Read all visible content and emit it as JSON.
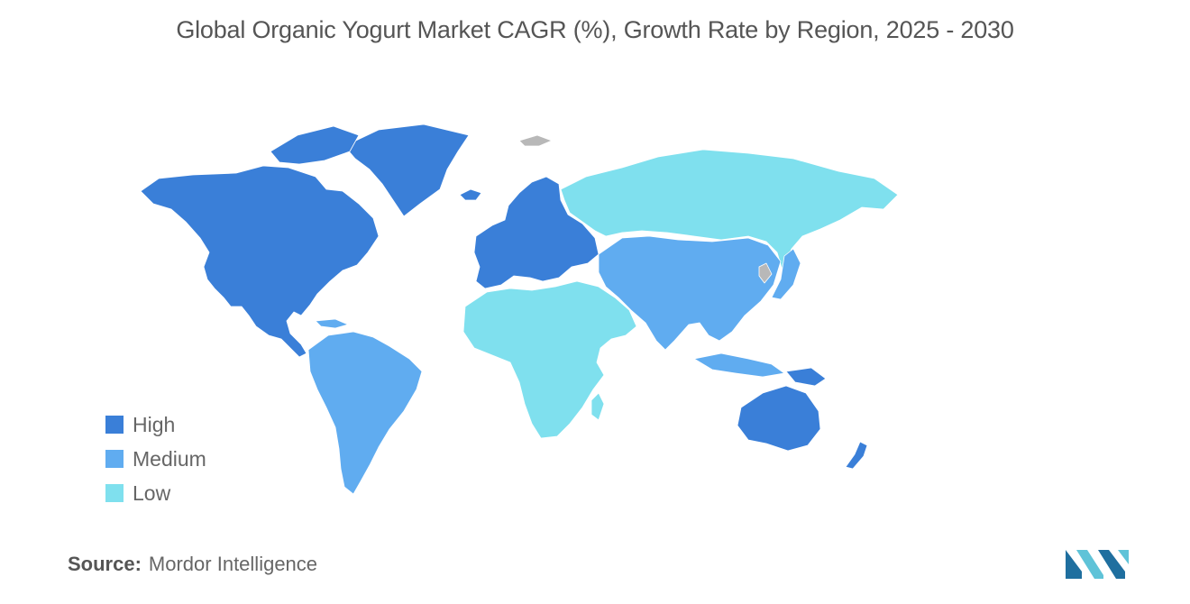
{
  "title": "Global Organic Yogurt Market CAGR (%), Growth Rate by Region, 2025 - 2030",
  "legend": [
    {
      "label": "High",
      "color": "#3a7fd8"
    },
    {
      "label": "Medium",
      "color": "#60acf0"
    },
    {
      "label": "Low",
      "color": "#7fe0ee"
    }
  ],
  "no_data_color": "#b8b8b8",
  "source": {
    "label": "Source:",
    "value": "Mordor Intelligence"
  },
  "logo": {
    "icon": "mordor-intelligence-logo-icon",
    "color_dark": "#1f6f9f",
    "color_light": "#5fc3d8"
  }
}
